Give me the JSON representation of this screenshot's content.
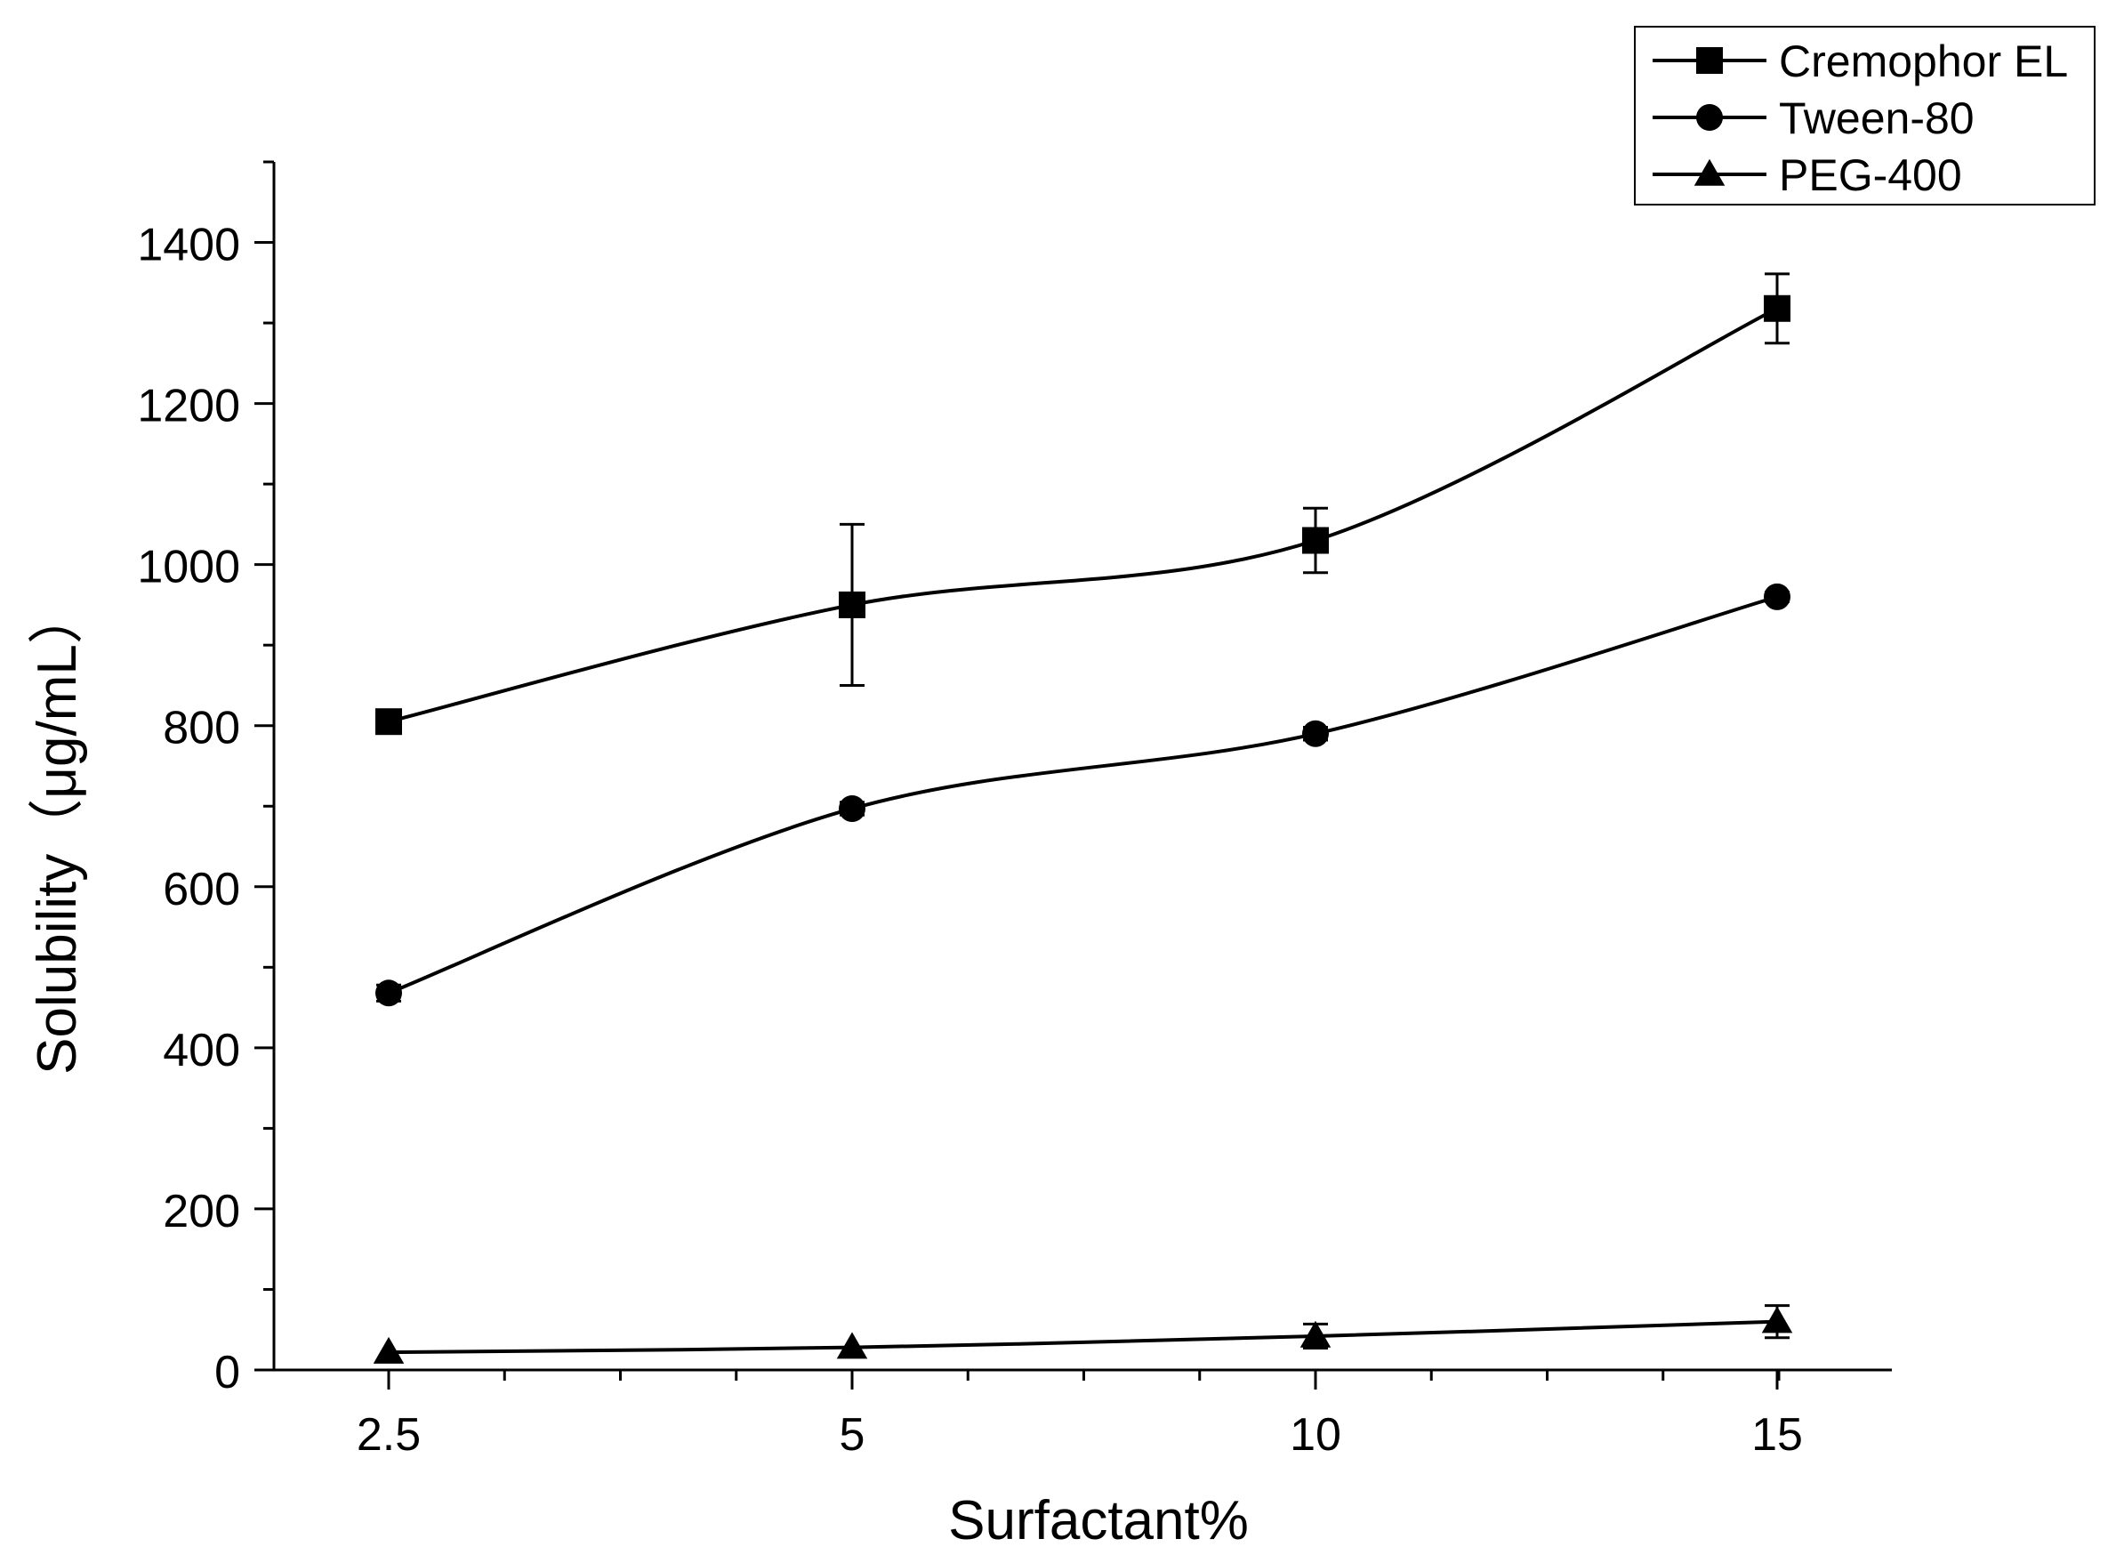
{
  "chart_data": {
    "type": "line",
    "xlabel": "Surfactant%",
    "ylabel": "Solubility（μg/mL）",
    "categories": [
      "2.5",
      "5",
      "10",
      "15"
    ],
    "ylim": [
      0,
      1500
    ],
    "yticks": [
      0,
      200,
      400,
      600,
      800,
      1000,
      1200,
      1400
    ],
    "grid": false,
    "legend_position": "top-right",
    "series": [
      {
        "name": "Cremophor EL",
        "marker": "square",
        "values": [
          805,
          950,
          1030,
          1318
        ],
        "errors": [
          8,
          100,
          40,
          43
        ]
      },
      {
        "name": "Tween-80",
        "marker": "circle",
        "values": [
          468,
          697,
          790,
          960
        ],
        "errors": [
          10,
          8,
          8,
          6
        ]
      },
      {
        "name": "PEG-400",
        "marker": "triangle",
        "values": [
          22,
          28,
          42,
          60
        ],
        "errors": [
          0,
          0,
          15,
          20
        ]
      }
    ]
  }
}
